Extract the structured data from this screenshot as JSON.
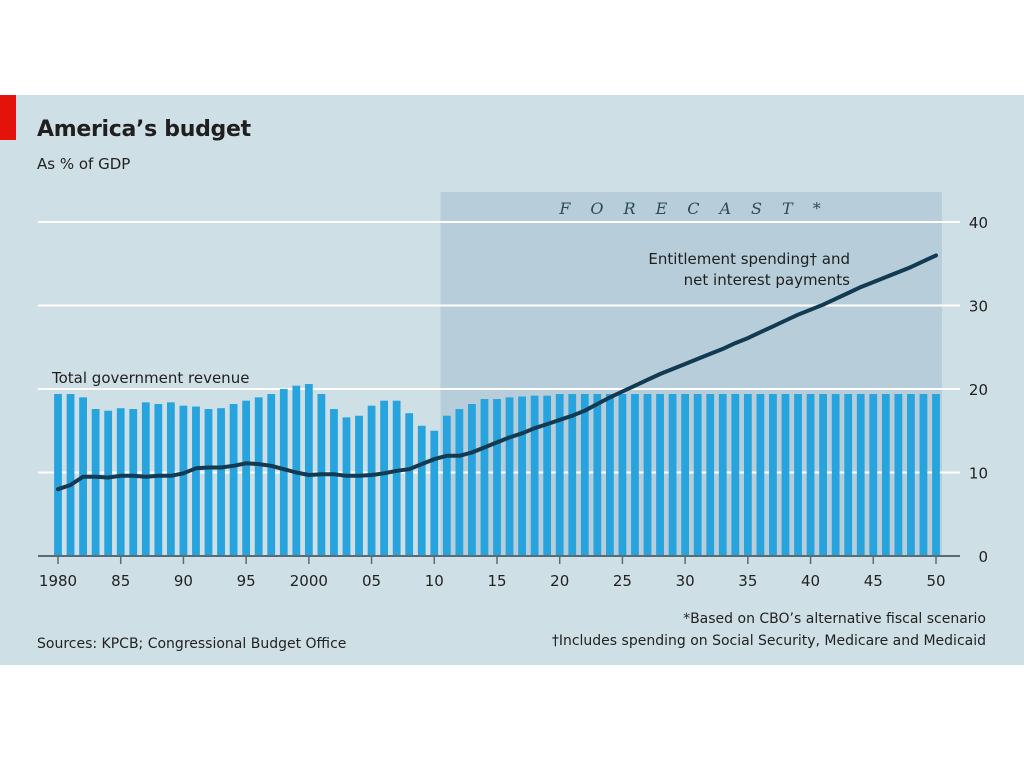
{
  "header": {
    "title": "America’s budget",
    "subtitle": "As % of GDP"
  },
  "footer": {
    "note_forecast": "*Based on CBO’s alternative fiscal scenario",
    "note_entitlement": "†Includes spending on Social Security, Medicare and Medicaid",
    "sources": "Sources: KPCB; Congressional Budget Office"
  },
  "colors": {
    "panel_background": "#cfdfe6",
    "forecast_shade": "#b7ceda",
    "bars": "#27a3de",
    "line": "#123a52",
    "gridline": "#ffffff",
    "brand_red": "#e3120b"
  },
  "chart_data": {
    "type": "bar",
    "x_tick_labels": [
      "1980",
      "85",
      "90",
      "95",
      "2000",
      "05",
      "10",
      "15",
      "20",
      "25",
      "30",
      "35",
      "40",
      "45",
      "50"
    ],
    "x_ticks": [
      1980,
      1985,
      1990,
      1995,
      2000,
      2005,
      2010,
      2015,
      2020,
      2025,
      2030,
      2035,
      2040,
      2045,
      2050
    ],
    "y_ticks": [
      0,
      10,
      20,
      30,
      40
    ],
    "ylim": [
      0,
      40
    ],
    "xlim": [
      1980,
      2050
    ],
    "grid": true,
    "y_axis_side": "right",
    "forecast_label": "FORECAST*",
    "forecast_start": 2011,
    "series": [
      {
        "name": "Total government revenue",
        "type": "bar",
        "x": [
          1980,
          1981,
          1982,
          1983,
          1984,
          1985,
          1986,
          1987,
          1988,
          1989,
          1990,
          1991,
          1992,
          1993,
          1994,
          1995,
          1996,
          1997,
          1998,
          1999,
          2000,
          2001,
          2002,
          2003,
          2004,
          2005,
          2006,
          2007,
          2008,
          2009,
          2010,
          2011,
          2012,
          2013,
          2014,
          2015,
          2016,
          2017,
          2018,
          2019,
          2020,
          2021,
          2022,
          2023,
          2024,
          2025,
          2026,
          2027,
          2028,
          2029,
          2030,
          2031,
          2032,
          2033,
          2034,
          2035,
          2036,
          2037,
          2038,
          2039,
          2040,
          2041,
          2042,
          2043,
          2044,
          2045,
          2046,
          2047,
          2048,
          2049,
          2050
        ],
        "values": [
          19.4,
          19.4,
          19.0,
          17.6,
          17.4,
          17.7,
          17.6,
          18.4,
          18.2,
          18.4,
          18.0,
          17.9,
          17.6,
          17.7,
          18.2,
          18.6,
          19.0,
          19.4,
          20.0,
          20.4,
          20.6,
          19.4,
          17.6,
          16.6,
          16.8,
          18.0,
          18.6,
          18.6,
          17.1,
          15.6,
          15.0,
          16.8,
          17.6,
          18.2,
          18.8,
          18.8,
          19.0,
          19.1,
          19.2,
          19.2,
          19.4,
          19.4,
          19.4,
          19.4,
          19.4,
          19.4,
          19.4,
          19.4,
          19.4,
          19.4,
          19.4,
          19.4,
          19.4,
          19.4,
          19.4,
          19.4,
          19.4,
          19.4,
          19.4,
          19.4,
          19.4,
          19.4,
          19.4,
          19.4,
          19.4,
          19.4,
          19.4,
          19.4,
          19.4,
          19.4,
          19.4
        ]
      },
      {
        "name": "Entitlement spending† and net interest payments",
        "name_line1": "Entitlement spending† and",
        "name_line2": "net interest payments",
        "type": "line",
        "x": [
          1980,
          1981,
          1982,
          1983,
          1984,
          1985,
          1986,
          1987,
          1988,
          1989,
          1990,
          1991,
          1992,
          1993,
          1994,
          1995,
          1996,
          1997,
          1998,
          1999,
          2000,
          2001,
          2002,
          2003,
          2004,
          2005,
          2006,
          2007,
          2008,
          2009,
          2010,
          2011,
          2012,
          2013,
          2014,
          2015,
          2016,
          2017,
          2018,
          2019,
          2020,
          2021,
          2022,
          2023,
          2024,
          2025,
          2026,
          2027,
          2028,
          2029,
          2030,
          2031,
          2032,
          2033,
          2034,
          2035,
          2036,
          2037,
          2038,
          2039,
          2040,
          2041,
          2042,
          2043,
          2044,
          2045,
          2046,
          2047,
          2048,
          2049,
          2050
        ],
        "values": [
          8.0,
          8.5,
          9.5,
          9.5,
          9.4,
          9.6,
          9.6,
          9.5,
          9.6,
          9.6,
          9.9,
          10.5,
          10.6,
          10.6,
          10.8,
          11.1,
          11.0,
          10.8,
          10.4,
          10.0,
          9.7,
          9.8,
          9.8,
          9.6,
          9.6,
          9.7,
          9.9,
          10.2,
          10.4,
          11.0,
          11.6,
          12.0,
          12.0,
          12.4,
          13.0,
          13.6,
          14.2,
          14.7,
          15.3,
          15.8,
          16.3,
          16.8,
          17.4,
          18.2,
          19.0,
          19.7,
          20.4,
          21.1,
          21.8,
          22.4,
          23.0,
          23.6,
          24.2,
          24.8,
          25.5,
          26.1,
          26.8,
          27.5,
          28.2,
          28.9,
          29.5,
          30.1,
          30.8,
          31.5,
          32.2,
          32.8,
          33.4,
          34.0,
          34.6,
          35.3,
          36.0
        ]
      }
    ]
  }
}
